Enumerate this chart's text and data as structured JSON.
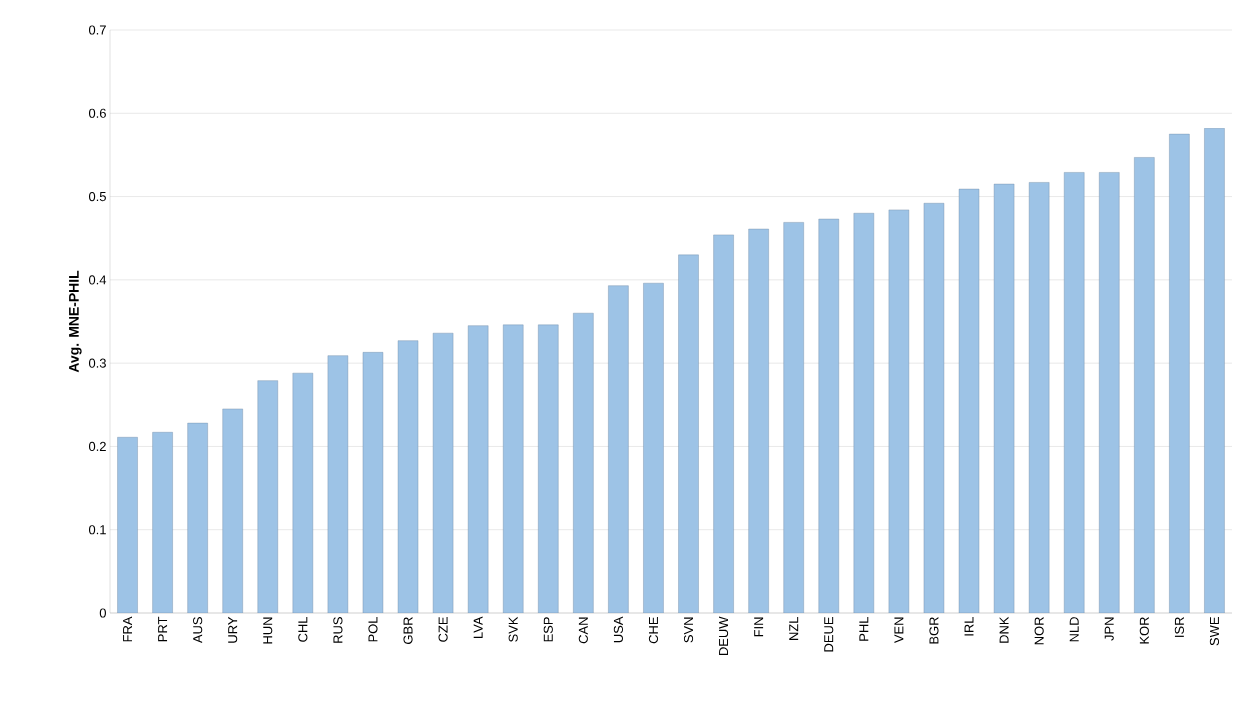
{
  "chart_data": {
    "type": "bar",
    "ylabel": "Avg. MNE-PHIL",
    "categories": [
      "FRA",
      "PRT",
      "AUS",
      "URY",
      "HUN",
      "CHL",
      "RUS",
      "POL",
      "GBR",
      "CZE",
      "LVA",
      "SVK",
      "ESP",
      "CAN",
      "USA",
      "CHE",
      "SVN",
      "DEUW",
      "FIN",
      "NZL",
      "DEUE",
      "PHL",
      "VEN",
      "BGR",
      "IRL",
      "DNK",
      "NOR",
      "NLD",
      "JPN",
      "KOR",
      "ISR",
      "SWE"
    ],
    "values": [
      0.211,
      0.217,
      0.228,
      0.245,
      0.279,
      0.288,
      0.309,
      0.313,
      0.327,
      0.336,
      0.345,
      0.346,
      0.346,
      0.36,
      0.393,
      0.396,
      0.43,
      0.454,
      0.461,
      0.469,
      0.473,
      0.48,
      0.484,
      0.492,
      0.509,
      0.515,
      0.517,
      0.529,
      0.529,
      0.547,
      0.575,
      0.582
    ],
    "color": "#9dc3e6",
    "ylim": [
      0,
      0.7
    ],
    "yticks": [
      0,
      0.1,
      0.2,
      0.3,
      0.4,
      0.5,
      0.6,
      0.7
    ],
    "grid": "y"
  }
}
